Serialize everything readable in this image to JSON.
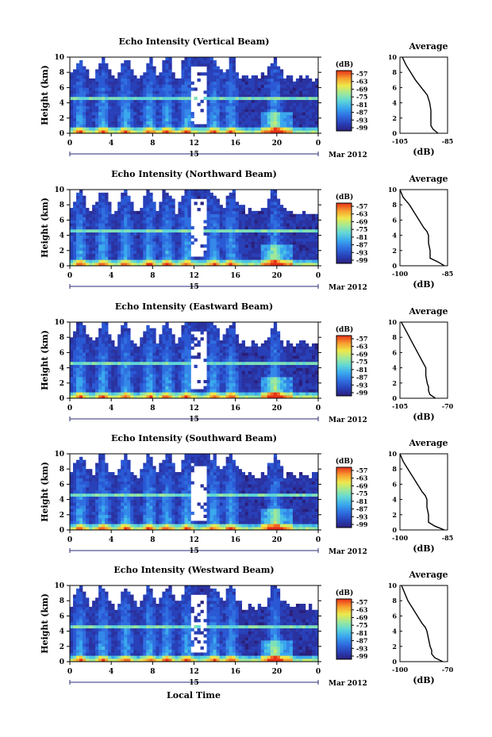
{
  "figure": {
    "xlabel": "Local Time",
    "date_label": "Mar 2012",
    "day_label": "15",
    "ylabel": "Height (km)",
    "colorbar_title": "(dB)",
    "avg_title": "Average",
    "avg_xlabel": "(dB)"
  },
  "chart_data": [
    {
      "type": "heatmap",
      "title": "Echo Intensity (Vertical Beam)",
      "xlabel": "Local Time",
      "ylabel": "Height (km)",
      "x_ticks": [
        "0",
        "4",
        "8",
        "12",
        "16",
        "20",
        "0"
      ],
      "xlim": [
        0,
        24
      ],
      "y_ticks": [
        "0",
        "2",
        "4",
        "6",
        "8",
        "10"
      ],
      "ylim": [
        0,
        10
      ],
      "colorbar": {
        "label": "(dB)",
        "ticks": [
          "-57",
          "-63",
          "-69",
          "-75",
          "-81",
          "-87",
          "-93",
          "-99"
        ],
        "range": [
          -99,
          -57
        ]
      },
      "average_profile": {
        "type": "line",
        "title": "Average",
        "xlabel": "(dB)",
        "xlim": [
          -105,
          -85
        ],
        "x_ticks": [
          "-105",
          "-85"
        ],
        "ylim": [
          0,
          10
        ],
        "height": [
          0,
          0.5,
          1,
          1.5,
          2,
          3,
          4,
          4.5,
          5,
          6,
          7,
          8,
          9,
          10
        ],
        "value": [
          -89,
          -91,
          -92,
          -92,
          -92,
          -92,
          -92.5,
          -93,
          -93.5,
          -96,
          -98.5,
          -100.5,
          -102.5,
          -104
        ]
      }
    },
    {
      "type": "heatmap",
      "title": "Echo Intensity (Northward Beam)",
      "xlabel": "Local Time",
      "ylabel": "Height (km)",
      "x_ticks": [
        "0",
        "4",
        "8",
        "12",
        "16",
        "20",
        "0"
      ],
      "xlim": [
        0,
        24
      ],
      "y_ticks": [
        "0",
        "2",
        "4",
        "6",
        "8",
        "10"
      ],
      "ylim": [
        0,
        10
      ],
      "colorbar": {
        "label": "(dB)",
        "ticks": [
          "-57",
          "-63",
          "-69",
          "-75",
          "-81",
          "-87",
          "-93",
          "-99"
        ],
        "range": [
          -99,
          -57
        ]
      },
      "average_profile": {
        "type": "line",
        "title": "Average",
        "xlabel": "(dB)",
        "xlim": [
          -100,
          -85
        ],
        "x_ticks": [
          "-100",
          "-85"
        ],
        "ylim": [
          0,
          10
        ],
        "height": [
          0,
          0.5,
          1,
          1.5,
          2,
          3,
          4,
          4.5,
          5,
          6,
          7,
          8,
          9,
          10
        ],
        "value": [
          -86,
          -88,
          -90.5,
          -90.5,
          -90.5,
          -91,
          -91,
          -91.5,
          -92.5,
          -94,
          -95.5,
          -97,
          -99,
          -100
        ]
      }
    },
    {
      "type": "heatmap",
      "title": "Echo Intensity (Eastward Beam)",
      "xlabel": "Local Time",
      "ylabel": "Height (km)",
      "x_ticks": [
        "0",
        "4",
        "8",
        "12",
        "16",
        "20",
        "0"
      ],
      "xlim": [
        0,
        24
      ],
      "y_ticks": [
        "0",
        "2",
        "4",
        "6",
        "8",
        "10"
      ],
      "ylim": [
        0,
        10
      ],
      "colorbar": {
        "label": "(dB)",
        "ticks": [
          "-57",
          "-63",
          "-69",
          "-75",
          "-81",
          "-87",
          "-93",
          "-99"
        ],
        "range": [
          -99,
          -57
        ]
      },
      "average_profile": {
        "type": "line",
        "title": "Average",
        "xlabel": "(dB)",
        "xlim": [
          -105,
          -70
        ],
        "x_ticks": [
          "-105",
          "-70"
        ],
        "ylim": [
          0,
          10
        ],
        "height": [
          0,
          0.5,
          1,
          1.5,
          2,
          3,
          4,
          4.5,
          5,
          6,
          7,
          8,
          9,
          10
        ],
        "value": [
          -79,
          -83,
          -84,
          -84,
          -85,
          -86,
          -86,
          -87.5,
          -89,
          -92,
          -95,
          -98,
          -101,
          -104
        ]
      }
    },
    {
      "type": "heatmap",
      "title": "Echo Intensity (Southward Beam)",
      "xlabel": "Local Time",
      "ylabel": "Height (km)",
      "x_ticks": [
        "0",
        "4",
        "8",
        "12",
        "16",
        "20",
        "0"
      ],
      "xlim": [
        0,
        24
      ],
      "y_ticks": [
        "0",
        "2",
        "4",
        "6",
        "8",
        "10"
      ],
      "ylim": [
        0,
        10
      ],
      "colorbar": {
        "label": "(dB)",
        "ticks": [
          "-57",
          "-63",
          "-69",
          "-75",
          "-81",
          "-87",
          "-93",
          "-99"
        ],
        "range": [
          -99,
          -57
        ]
      },
      "average_profile": {
        "type": "line",
        "title": "Average",
        "xlabel": "(dB)",
        "xlim": [
          -100,
          -85
        ],
        "x_ticks": [
          "-100",
          "-85"
        ],
        "ylim": [
          0,
          10
        ],
        "height": [
          0,
          0.5,
          1,
          1.5,
          2,
          3,
          4,
          4.5,
          5,
          6,
          7,
          8,
          9,
          10
        ],
        "value": [
          -86,
          -89,
          -91,
          -91,
          -91,
          -91.5,
          -91.5,
          -92,
          -93,
          -94.5,
          -96,
          -97.5,
          -99,
          -100
        ]
      }
    },
    {
      "type": "heatmap",
      "title": "Echo Intensity (Westward Beam)",
      "xlabel": "Local Time",
      "ylabel": "Height (km)",
      "x_ticks": [
        "0",
        "4",
        "8",
        "12",
        "16",
        "20",
        "0"
      ],
      "xlim": [
        0,
        24
      ],
      "y_ticks": [
        "0",
        "2",
        "4",
        "6",
        "8",
        "10"
      ],
      "ylim": [
        0,
        10
      ],
      "colorbar": {
        "label": "(dB)",
        "ticks": [
          "-57",
          "-63",
          "-69",
          "-75",
          "-81",
          "-87",
          "-93",
          "-99"
        ],
        "range": [
          -99,
          -57
        ]
      },
      "average_profile": {
        "type": "line",
        "title": "Average",
        "xlabel": "(dB)",
        "xlim": [
          -100,
          -70
        ],
        "x_ticks": [
          "-100",
          "-70"
        ],
        "ylim": [
          0,
          10
        ],
        "height": [
          0,
          0.5,
          1,
          1.5,
          2,
          3,
          4,
          4.5,
          5,
          6,
          7,
          8,
          9,
          10
        ],
        "value": [
          -73,
          -78,
          -80,
          -80,
          -81,
          -82,
          -83,
          -84,
          -86,
          -89,
          -92,
          -95,
          -97,
          -99
        ]
      }
    }
  ]
}
